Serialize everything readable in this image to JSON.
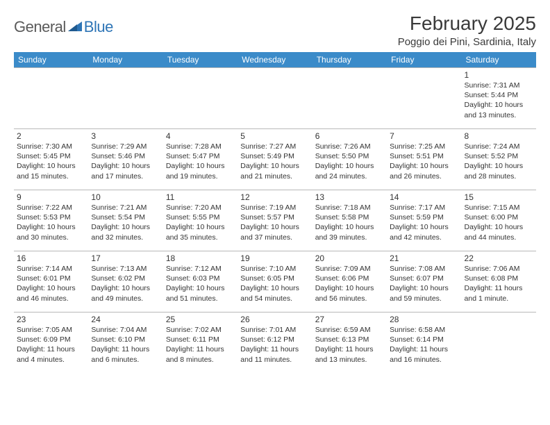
{
  "logo": {
    "general": "General",
    "blue": "Blue"
  },
  "header": {
    "title": "February 2025",
    "location": "Poggio dei Pini, Sardinia, Italy"
  },
  "colors": {
    "header_bg": "#3b8bc9",
    "header_text": "#ffffff",
    "cell_border": "#b8b8b8",
    "text": "#333333",
    "logo_gray": "#5a5a5a",
    "logo_blue": "#2e75b6"
  },
  "dayheads": [
    "Sunday",
    "Monday",
    "Tuesday",
    "Wednesday",
    "Thursday",
    "Friday",
    "Saturday"
  ],
  "weeks": [
    [
      null,
      null,
      null,
      null,
      null,
      null,
      {
        "n": "1",
        "sr": "7:31 AM",
        "ss": "5:44 PM",
        "dl": "10 hours and 13 minutes."
      }
    ],
    [
      {
        "n": "2",
        "sr": "7:30 AM",
        "ss": "5:45 PM",
        "dl": "10 hours and 15 minutes."
      },
      {
        "n": "3",
        "sr": "7:29 AM",
        "ss": "5:46 PM",
        "dl": "10 hours and 17 minutes."
      },
      {
        "n": "4",
        "sr": "7:28 AM",
        "ss": "5:47 PM",
        "dl": "10 hours and 19 minutes."
      },
      {
        "n": "5",
        "sr": "7:27 AM",
        "ss": "5:49 PM",
        "dl": "10 hours and 21 minutes."
      },
      {
        "n": "6",
        "sr": "7:26 AM",
        "ss": "5:50 PM",
        "dl": "10 hours and 24 minutes."
      },
      {
        "n": "7",
        "sr": "7:25 AM",
        "ss": "5:51 PM",
        "dl": "10 hours and 26 minutes."
      },
      {
        "n": "8",
        "sr": "7:24 AM",
        "ss": "5:52 PM",
        "dl": "10 hours and 28 minutes."
      }
    ],
    [
      {
        "n": "9",
        "sr": "7:22 AM",
        "ss": "5:53 PM",
        "dl": "10 hours and 30 minutes."
      },
      {
        "n": "10",
        "sr": "7:21 AM",
        "ss": "5:54 PM",
        "dl": "10 hours and 32 minutes."
      },
      {
        "n": "11",
        "sr": "7:20 AM",
        "ss": "5:55 PM",
        "dl": "10 hours and 35 minutes."
      },
      {
        "n": "12",
        "sr": "7:19 AM",
        "ss": "5:57 PM",
        "dl": "10 hours and 37 minutes."
      },
      {
        "n": "13",
        "sr": "7:18 AM",
        "ss": "5:58 PM",
        "dl": "10 hours and 39 minutes."
      },
      {
        "n": "14",
        "sr": "7:17 AM",
        "ss": "5:59 PM",
        "dl": "10 hours and 42 minutes."
      },
      {
        "n": "15",
        "sr": "7:15 AM",
        "ss": "6:00 PM",
        "dl": "10 hours and 44 minutes."
      }
    ],
    [
      {
        "n": "16",
        "sr": "7:14 AM",
        "ss": "6:01 PM",
        "dl": "10 hours and 46 minutes."
      },
      {
        "n": "17",
        "sr": "7:13 AM",
        "ss": "6:02 PM",
        "dl": "10 hours and 49 minutes."
      },
      {
        "n": "18",
        "sr": "7:12 AM",
        "ss": "6:03 PM",
        "dl": "10 hours and 51 minutes."
      },
      {
        "n": "19",
        "sr": "7:10 AM",
        "ss": "6:05 PM",
        "dl": "10 hours and 54 minutes."
      },
      {
        "n": "20",
        "sr": "7:09 AM",
        "ss": "6:06 PM",
        "dl": "10 hours and 56 minutes."
      },
      {
        "n": "21",
        "sr": "7:08 AM",
        "ss": "6:07 PM",
        "dl": "10 hours and 59 minutes."
      },
      {
        "n": "22",
        "sr": "7:06 AM",
        "ss": "6:08 PM",
        "dl": "11 hours and 1 minute."
      }
    ],
    [
      {
        "n": "23",
        "sr": "7:05 AM",
        "ss": "6:09 PM",
        "dl": "11 hours and 4 minutes."
      },
      {
        "n": "24",
        "sr": "7:04 AM",
        "ss": "6:10 PM",
        "dl": "11 hours and 6 minutes."
      },
      {
        "n": "25",
        "sr": "7:02 AM",
        "ss": "6:11 PM",
        "dl": "11 hours and 8 minutes."
      },
      {
        "n": "26",
        "sr": "7:01 AM",
        "ss": "6:12 PM",
        "dl": "11 hours and 11 minutes."
      },
      {
        "n": "27",
        "sr": "6:59 AM",
        "ss": "6:13 PM",
        "dl": "11 hours and 13 minutes."
      },
      {
        "n": "28",
        "sr": "6:58 AM",
        "ss": "6:14 PM",
        "dl": "11 hours and 16 minutes."
      },
      null
    ]
  ],
  "labels": {
    "sunrise": "Sunrise:",
    "sunset": "Sunset:",
    "daylight": "Daylight:"
  }
}
